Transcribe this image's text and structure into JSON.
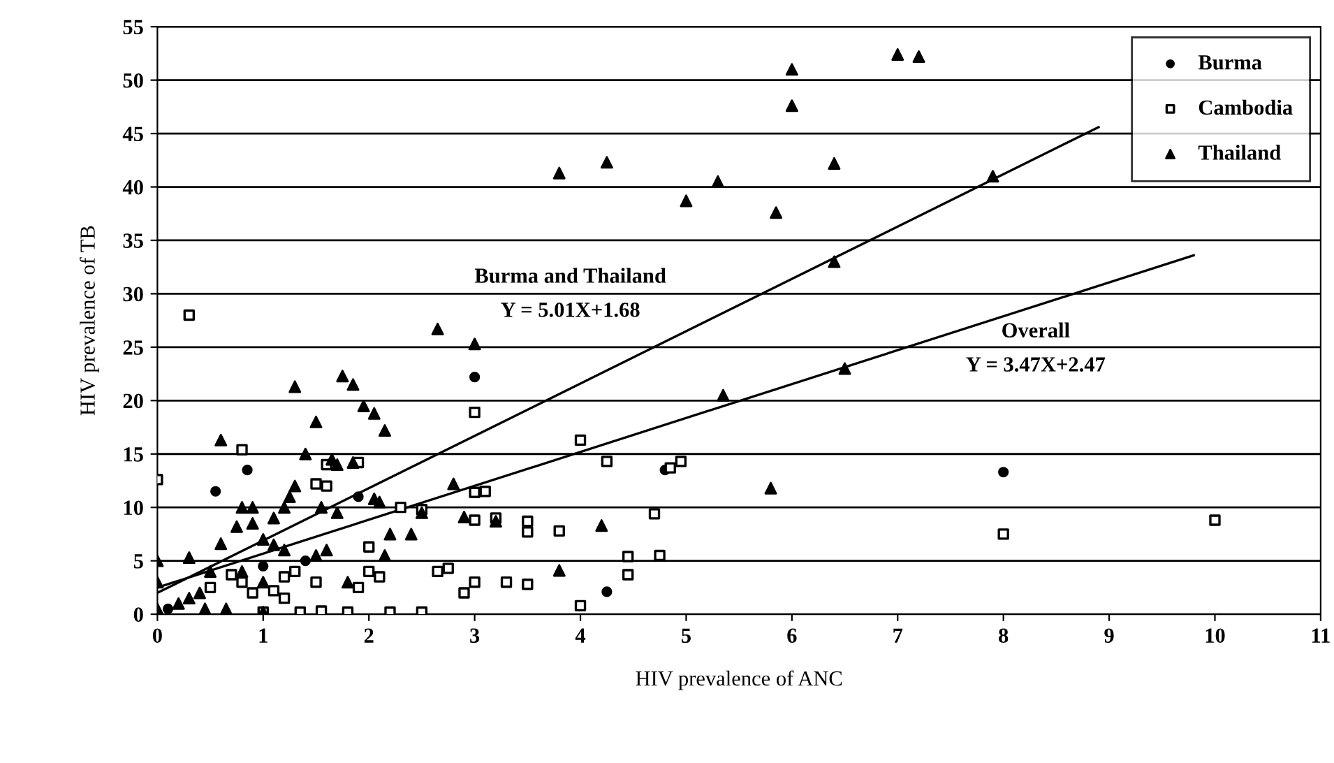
{
  "chart_data": {
    "type": "scatter",
    "xlabel": "HIV prevalence of ANC",
    "ylabel": "HIV prevalence of TB",
    "xlim": [
      0,
      11
    ],
    "xticks": [
      0,
      1,
      2,
      3,
      4,
      5,
      6,
      7,
      8,
      9,
      10,
      11
    ],
    "ylim": [
      0,
      55
    ],
    "yticks": [
      0,
      5,
      10,
      15,
      20,
      25,
      30,
      35,
      40,
      45,
      50,
      55
    ],
    "grid": "y",
    "legend": "top right",
    "series": [
      {
        "name": "Burma",
        "color": "#000000",
        "marker": "circle",
        "x": [
          0.55,
          0.85,
          3.0,
          4.8,
          8.0,
          4.25,
          0.1,
          1.0,
          1.4,
          1.9
        ],
        "values": [
          11.5,
          13.5,
          22.2,
          13.5,
          13.3,
          2.1,
          0.5,
          4.5,
          5.0,
          11.0
        ]
      },
      {
        "name": "Cambodia",
        "color": "#000000",
        "marker": "square",
        "x": [
          0,
          0.3,
          0.8,
          1.5,
          1.6,
          1.6,
          1.9,
          2.0,
          2.3,
          2.5,
          2.9,
          3.0,
          3.0,
          3.0,
          3.0,
          3.1,
          3.2,
          3.3,
          3.5,
          3.5,
          3.5,
          3.8,
          4.0,
          4.0,
          4.25,
          4.7,
          4.75,
          4.85,
          4.95,
          4.45,
          4.45,
          8.0,
          10.0,
          2.5,
          2.2,
          1.8,
          1.55,
          1.35,
          1.0,
          2.65,
          2.75,
          2.0,
          2.1,
          1.9,
          1.5,
          1.2,
          1.1,
          0.9,
          0.8,
          1.2,
          1.3,
          0.7,
          0.5
        ],
        "values": [
          12.6,
          28,
          15.4,
          12.2,
          12.0,
          14,
          14.2,
          6.3,
          10,
          9.8,
          2,
          3,
          8.8,
          11.4,
          18.9,
          11.5,
          9,
          3,
          7.7,
          8.7,
          2.8,
          7.8,
          16.3,
          0.8,
          14.3,
          9.4,
          5.5,
          13.7,
          14.3,
          5.4,
          3.7,
          7.5,
          8.8,
          0.2,
          0.2,
          0.2,
          0.3,
          0.2,
          0.2,
          4,
          4.3,
          4,
          3.5,
          2.5,
          3,
          1.5,
          2.2,
          2,
          3,
          3.5,
          4,
          3.7,
          2.5
        ]
      },
      {
        "name": "Thailand",
        "color": "#000000",
        "marker": "triangle",
        "x": [
          3.8,
          4.25,
          5.0,
          5.3,
          5.85,
          6.0,
          6.0,
          6.4,
          6.4,
          7.0,
          7.2,
          7.9,
          6.5,
          5.35,
          5.8,
          4.2,
          3.8,
          2.65,
          3.0,
          2.8,
          3.2,
          2.9,
          1.3,
          1.75,
          1.85,
          1.95,
          2.05,
          2.15,
          1.5,
          1.4,
          0.6,
          1.65,
          1.7,
          1.85,
          1.55,
          1.3,
          1.25,
          1.2,
          1.1,
          0.9,
          0.8,
          0.75,
          0.9,
          1.0,
          1.1,
          1.2,
          0.5,
          0.3,
          0.6,
          0.2,
          0.3,
          0.4,
          0.45,
          0.65,
          1.0,
          2.05,
          2.1,
          2.2,
          2.15,
          2.4,
          2.5,
          1.7,
          1.5,
          1.6,
          1.0,
          0.8,
          1.8,
          0,
          0,
          0
        ],
        "values": [
          41.3,
          42.3,
          38.7,
          40.5,
          37.6,
          47.6,
          51.0,
          42.2,
          33,
          52.4,
          52.2,
          41,
          23,
          20.5,
          11.8,
          8.3,
          4.1,
          26.7,
          25.3,
          12.2,
          8.7,
          9.1,
          21.3,
          22.3,
          21.5,
          19.5,
          18.8,
          17.2,
          18,
          15,
          16.3,
          14.5,
          14,
          14.2,
          10,
          12,
          11,
          10,
          9,
          10,
          10,
          8.2,
          8.5,
          7,
          6.5,
          6,
          4,
          5.3,
          6.6,
          1,
          1.5,
          2,
          0.5,
          0.5,
          0.2,
          10.8,
          10.5,
          7.5,
          5.5,
          7.5,
          9.5,
          9.5,
          5.5,
          6,
          3,
          4,
          3,
          0.5,
          3,
          5
        ]
      },
      {
        "type": "line",
        "color": "#000000",
        "marker": "none",
        "x": [
          0,
          8.9
        ],
        "values": [
          2.0,
          45.6
        ]
      },
      {
        "type": "line",
        "color": "#000000",
        "marker": "none",
        "x": [
          0,
          9.8
        ],
        "values": [
          2.5,
          33.6
        ]
      }
    ],
    "annotations": [
      "Burma and Thailand",
      "Y = 5.01X+1.68",
      "Overall",
      "Y = 3.47X+2.47"
    ]
  }
}
